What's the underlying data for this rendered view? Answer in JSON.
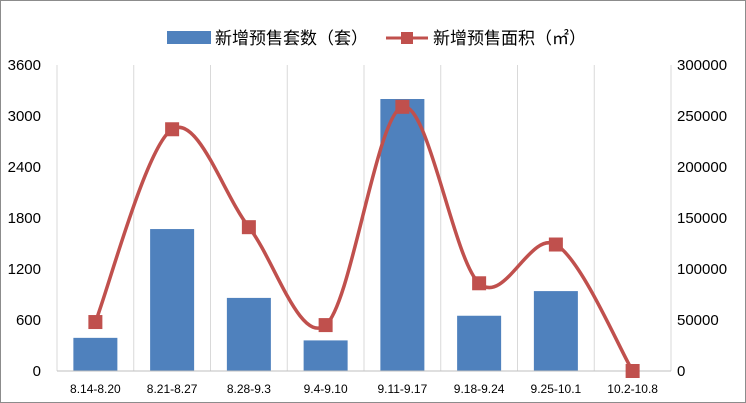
{
  "chart_data": {
    "type": "bar",
    "categories": [
      "8.14-8.20",
      "8.21-8.27",
      "8.28-9.3",
      "9.4-9.10",
      "9.11-9.17",
      "9.18-9.24",
      "9.25-10.1",
      "10.2-10.8"
    ],
    "series": [
      {
        "name": "新增预售套数（套）",
        "type": "bar",
        "axis": "left",
        "color": "#4f81bd",
        "values": [
          390,
          1670,
          860,
          360,
          3200,
          650,
          940,
          0
        ]
      },
      {
        "name": "新增预售面积（㎡）",
        "type": "line",
        "smooth": true,
        "marker": "square",
        "axis": "right",
        "color": "#c0504d",
        "values": [
          48000,
          237000,
          141000,
          45000,
          259000,
          86000,
          124000,
          0
        ]
      }
    ],
    "y_left": {
      "min": 0,
      "max": 3600,
      "ticks": [
        "0",
        "600",
        "1200",
        "1800",
        "2400",
        "3000",
        "3600"
      ]
    },
    "y_right": {
      "min": 0,
      "max": 300000,
      "ticks": [
        "0",
        "50000",
        "100000",
        "150000",
        "200000",
        "250000",
        "300000"
      ]
    },
    "grid": "vertical",
    "legend_position": "top"
  }
}
